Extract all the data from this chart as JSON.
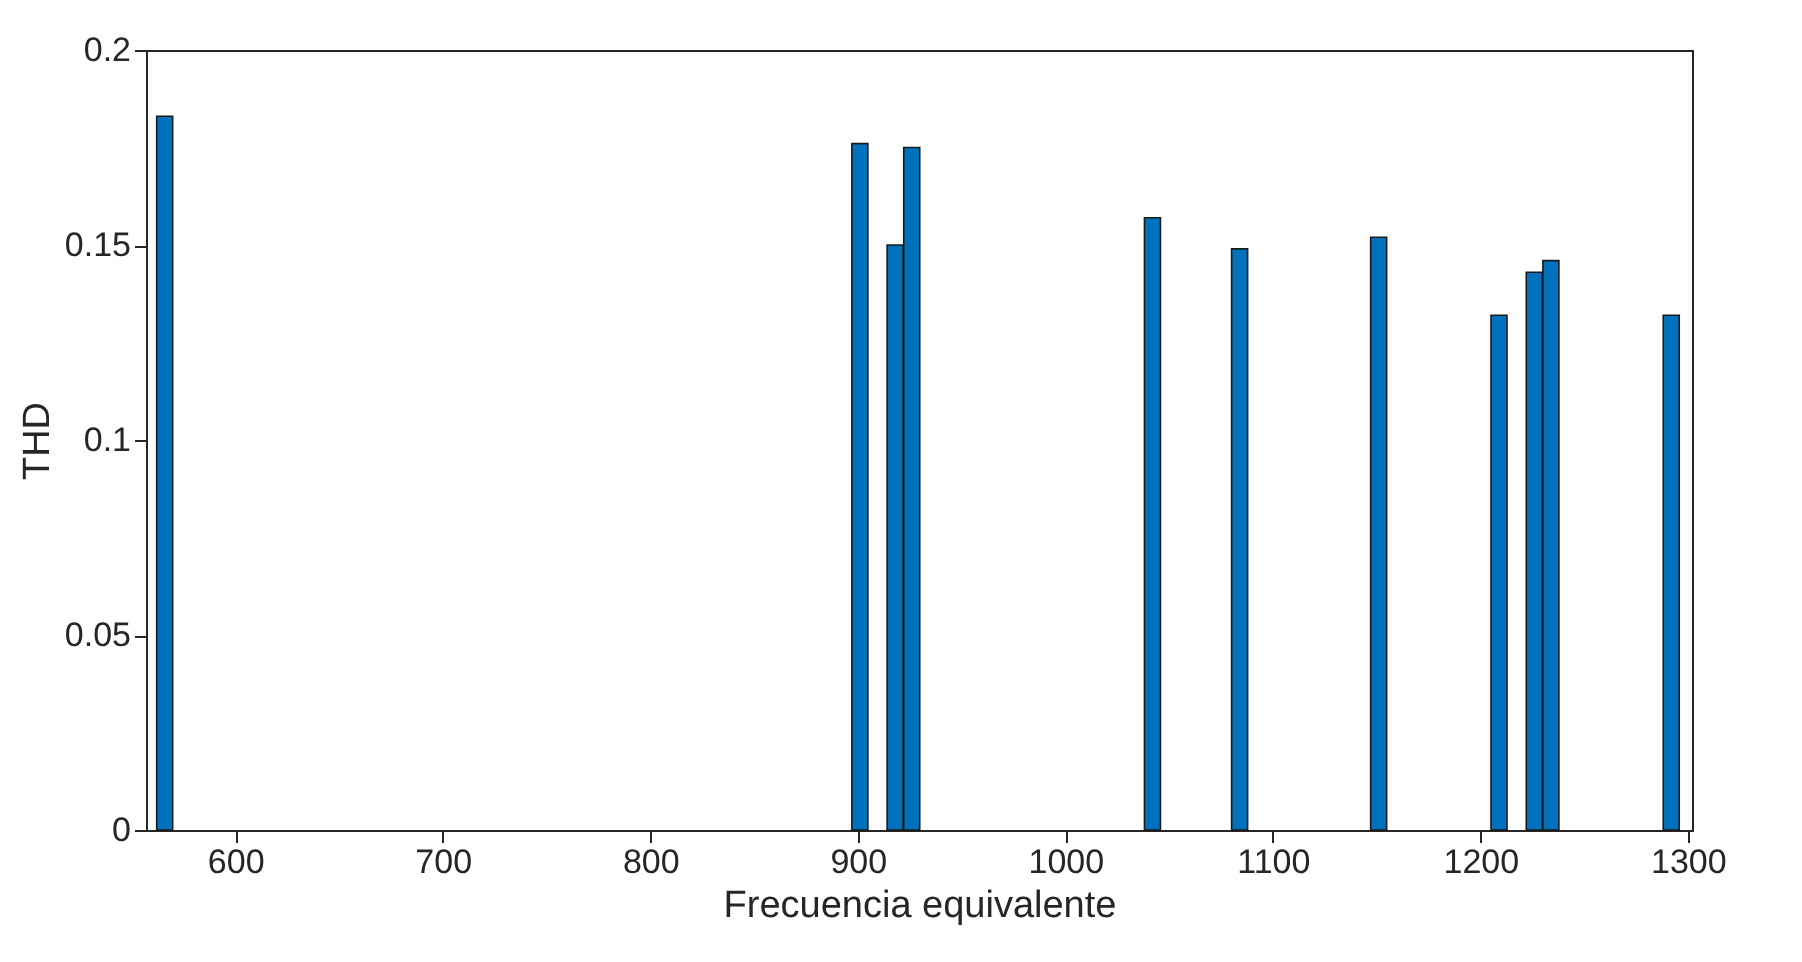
{
  "chart_data": {
    "type": "bar",
    "xlabel": "Frecuencia equivalente",
    "ylabel": "THD",
    "x": [
      566,
      901,
      918,
      926,
      1042,
      1084,
      1151,
      1209,
      1226,
      1234,
      1292
    ],
    "series": [
      {
        "color": "#0072bd",
        "values": [
          0.183,
          0.176,
          0.15,
          0.175,
          0.157,
          0.149,
          0.152,
          0.132,
          0.143,
          0.146,
          0.132
        ]
      }
    ],
    "xlim": [
      557,
      1302
    ],
    "xticks": [
      600,
      700,
      800,
      900,
      1000,
      1100,
      1200,
      1300
    ],
    "ylim": [
      0,
      0.2
    ],
    "yticks": [
      0,
      0.05,
      0.1,
      0.15,
      0.2
    ],
    "grid": false,
    "legend": false
  }
}
